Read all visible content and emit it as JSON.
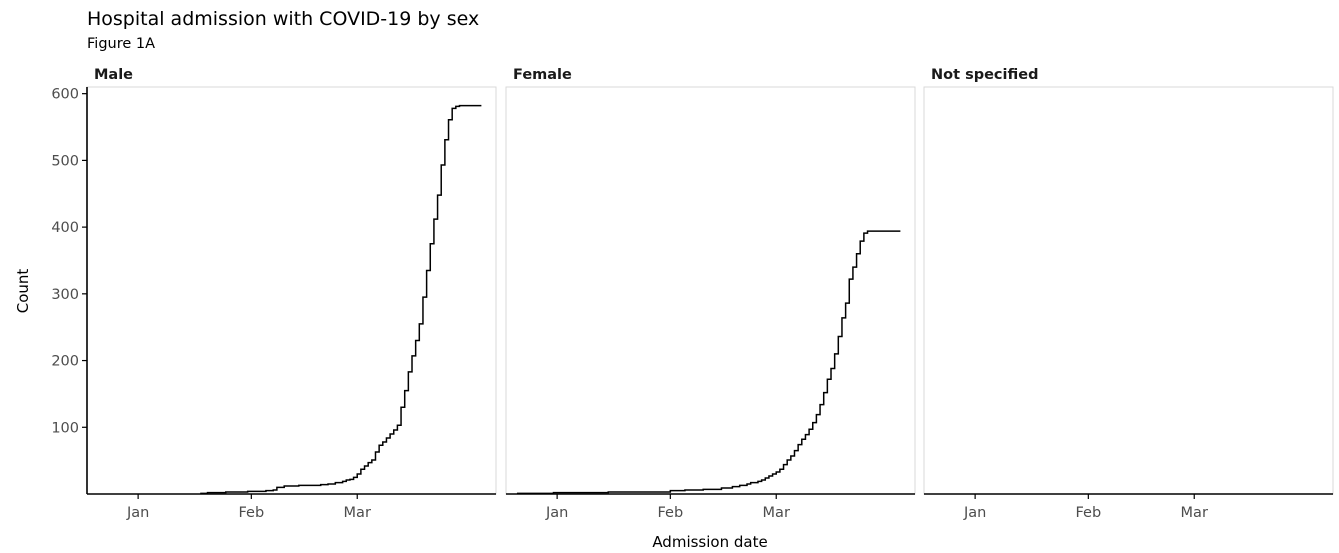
{
  "chart_data": {
    "type": "line",
    "title": "Hospital admission with COVID-19 by sex",
    "subtitle": "Figure 1A",
    "xlabel": "Admission date",
    "ylabel": "Count",
    "ylim": [
      0,
      610
    ],
    "yticks": [
      100,
      200,
      300,
      400,
      500,
      600
    ],
    "xlim": [
      "2019-12-18",
      "2020-04-08"
    ],
    "xticks": [
      {
        "label": "Jan",
        "date": "2020-01-01"
      },
      {
        "label": "Feb",
        "date": "2020-02-01"
      },
      {
        "label": "Mar",
        "date": "2020-03-01"
      }
    ],
    "step": true,
    "grid": false,
    "facets": [
      {
        "name": "Male",
        "x": [
          "2020-01-18",
          "2020-01-20",
          "2020-01-25",
          "2020-01-31",
          "2020-02-05",
          "2020-02-07",
          "2020-02-08",
          "2020-02-10",
          "2020-02-14",
          "2020-02-20",
          "2020-02-22",
          "2020-02-24",
          "2020-02-26",
          "2020-02-27",
          "2020-02-28",
          "2020-02-29",
          "2020-03-01",
          "2020-03-02",
          "2020-03-03",
          "2020-03-04",
          "2020-03-05",
          "2020-03-06",
          "2020-03-07",
          "2020-03-08",
          "2020-03-09",
          "2020-03-10",
          "2020-03-11",
          "2020-03-12",
          "2020-03-13",
          "2020-03-14",
          "2020-03-15",
          "2020-03-16",
          "2020-03-17",
          "2020-03-18",
          "2020-03-19",
          "2020-03-20",
          "2020-03-21",
          "2020-03-22",
          "2020-03-23",
          "2020-03-24",
          "2020-03-25",
          "2020-03-26",
          "2020-03-27",
          "2020-03-28",
          "2020-03-29",
          "2020-03-30",
          "2020-03-31",
          "2020-04-01",
          "2020-04-02",
          "2020-04-03",
          "2020-04-04"
        ],
        "y": [
          1,
          2,
          3,
          4,
          5,
          6,
          10,
          12,
          13,
          14,
          15,
          17,
          19,
          21,
          22,
          25,
          30,
          37,
          42,
          47,
          51,
          63,
          73,
          78,
          84,
          90,
          96,
          103,
          130,
          155,
          183,
          207,
          230,
          255,
          295,
          335,
          375,
          412,
          448,
          493,
          531,
          561,
          578,
          581,
          582,
          582,
          582,
          582,
          582,
          582,
          582
        ]
      },
      {
        "name": "Female",
        "x": [
          "2019-12-21",
          "2019-12-31",
          "2020-01-15",
          "2020-02-01",
          "2020-02-05",
          "2020-02-10",
          "2020-02-15",
          "2020-02-18",
          "2020-02-20",
          "2020-02-22",
          "2020-02-23",
          "2020-02-25",
          "2020-02-26",
          "2020-02-27",
          "2020-02-28",
          "2020-02-29",
          "2020-03-01",
          "2020-03-02",
          "2020-03-03",
          "2020-03-04",
          "2020-03-05",
          "2020-03-06",
          "2020-03-07",
          "2020-03-08",
          "2020-03-09",
          "2020-03-10",
          "2020-03-11",
          "2020-03-12",
          "2020-03-13",
          "2020-03-14",
          "2020-03-15",
          "2020-03-16",
          "2020-03-17",
          "2020-03-18",
          "2020-03-19",
          "2020-03-20",
          "2020-03-21",
          "2020-03-22",
          "2020-03-23",
          "2020-03-24",
          "2020-03-25",
          "2020-03-26",
          "2020-03-27",
          "2020-03-28",
          "2020-03-29",
          "2020-03-30",
          "2020-03-31",
          "2020-04-01",
          "2020-04-02",
          "2020-04-03",
          "2020-04-04"
        ],
        "y": [
          1,
          2,
          3,
          5,
          6,
          7,
          9,
          11,
          13,
          15,
          17,
          19,
          21,
          24,
          27,
          30,
          33,
          37,
          44,
          51,
          57,
          65,
          74,
          82,
          89,
          97,
          107,
          119,
          134,
          152,
          172,
          188,
          210,
          236,
          264,
          286,
          322,
          340,
          360,
          379,
          391,
          394,
          394,
          394,
          394,
          394,
          394,
          394,
          394,
          394,
          394
        ]
      },
      {
        "name": "Not specified",
        "x": [],
        "y": []
      }
    ]
  }
}
